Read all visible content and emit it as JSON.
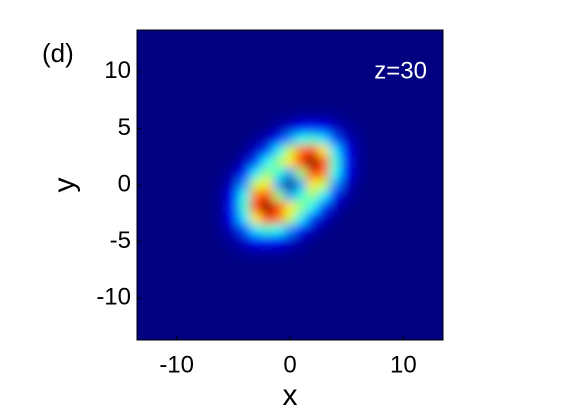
{
  "chart_data": {
    "type": "heatmap",
    "annotations": [
      "(d)",
      "z=30"
    ],
    "xlabel": "x",
    "ylabel": "y",
    "colormap": "jet",
    "x": [
      -6,
      -5,
      -4,
      -3,
      -2,
      -1,
      0,
      1,
      2,
      3,
      4,
      5,
      6
    ],
    "y": [
      6,
      5,
      4,
      3,
      2,
      1,
      0,
      -1,
      -2,
      -3,
      -4,
      -5,
      -6
    ],
    "z": [
      [
        0,
        0,
        0,
        0,
        0,
        0.01,
        0.01,
        0.03,
        0.03,
        0.03,
        0.02,
        0.01,
        0
      ],
      [
        0,
        0,
        0,
        0,
        0.01,
        0.04,
        0.08,
        0.13,
        0.15,
        0.13,
        0.07,
        0.03,
        0.01
      ],
      [
        0,
        0,
        0,
        0.02,
        0.06,
        0.14,
        0.27,
        0.39,
        0.43,
        0.35,
        0.2,
        0.07,
        0.02
      ],
      [
        0,
        0,
        0.02,
        0.07,
        0.18,
        0.36,
        0.57,
        0.76,
        0.82,
        0.64,
        0.35,
        0.13,
        0.03
      ],
      [
        0,
        0.01,
        0.06,
        0.18,
        0.37,
        0.52,
        0.64,
        0.85,
        1,
        0.82,
        0.43,
        0.15,
        0.03
      ],
      [
        0.01,
        0.04,
        0.14,
        0.36,
        0.52,
        0.41,
        0.28,
        0.53,
        0.85,
        0.76,
        0.39,
        0.13,
        0.03
      ],
      [
        0.01,
        0.08,
        0.27,
        0.57,
        0.64,
        0.28,
        0,
        0.28,
        0.64,
        0.57,
        0.27,
        0.08,
        0.01
      ],
      [
        0.03,
        0.13,
        0.39,
        0.76,
        0.85,
        0.53,
        0.28,
        0.41,
        0.52,
        0.36,
        0.14,
        0.04,
        0.01
      ],
      [
        0.03,
        0.15,
        0.43,
        0.82,
        1,
        0.85,
        0.64,
        0.52,
        0.37,
        0.18,
        0.06,
        0.01,
        0
      ],
      [
        0.03,
        0.13,
        0.35,
        0.64,
        0.82,
        0.76,
        0.57,
        0.36,
        0.18,
        0.07,
        0.02,
        0,
        0
      ],
      [
        0.02,
        0.07,
        0.2,
        0.35,
        0.43,
        0.39,
        0.27,
        0.14,
        0.06,
        0.02,
        0,
        0,
        0
      ],
      [
        0.01,
        0.03,
        0.07,
        0.13,
        0.15,
        0.13,
        0.08,
        0.04,
        0.01,
        0,
        0,
        0,
        0
      ],
      [
        0,
        0.01,
        0.02,
        0.03,
        0.03,
        0.03,
        0.01,
        0.01,
        0,
        0,
        0,
        0,
        0
      ]
    ],
    "xlim": [
      -13.5,
      13.5
    ],
    "ylim": [
      -13.7,
      13.7
    ],
    "xticks": [
      -10,
      0,
      10
    ],
    "yticks": [
      -10,
      -5,
      0,
      5,
      10
    ]
  }
}
